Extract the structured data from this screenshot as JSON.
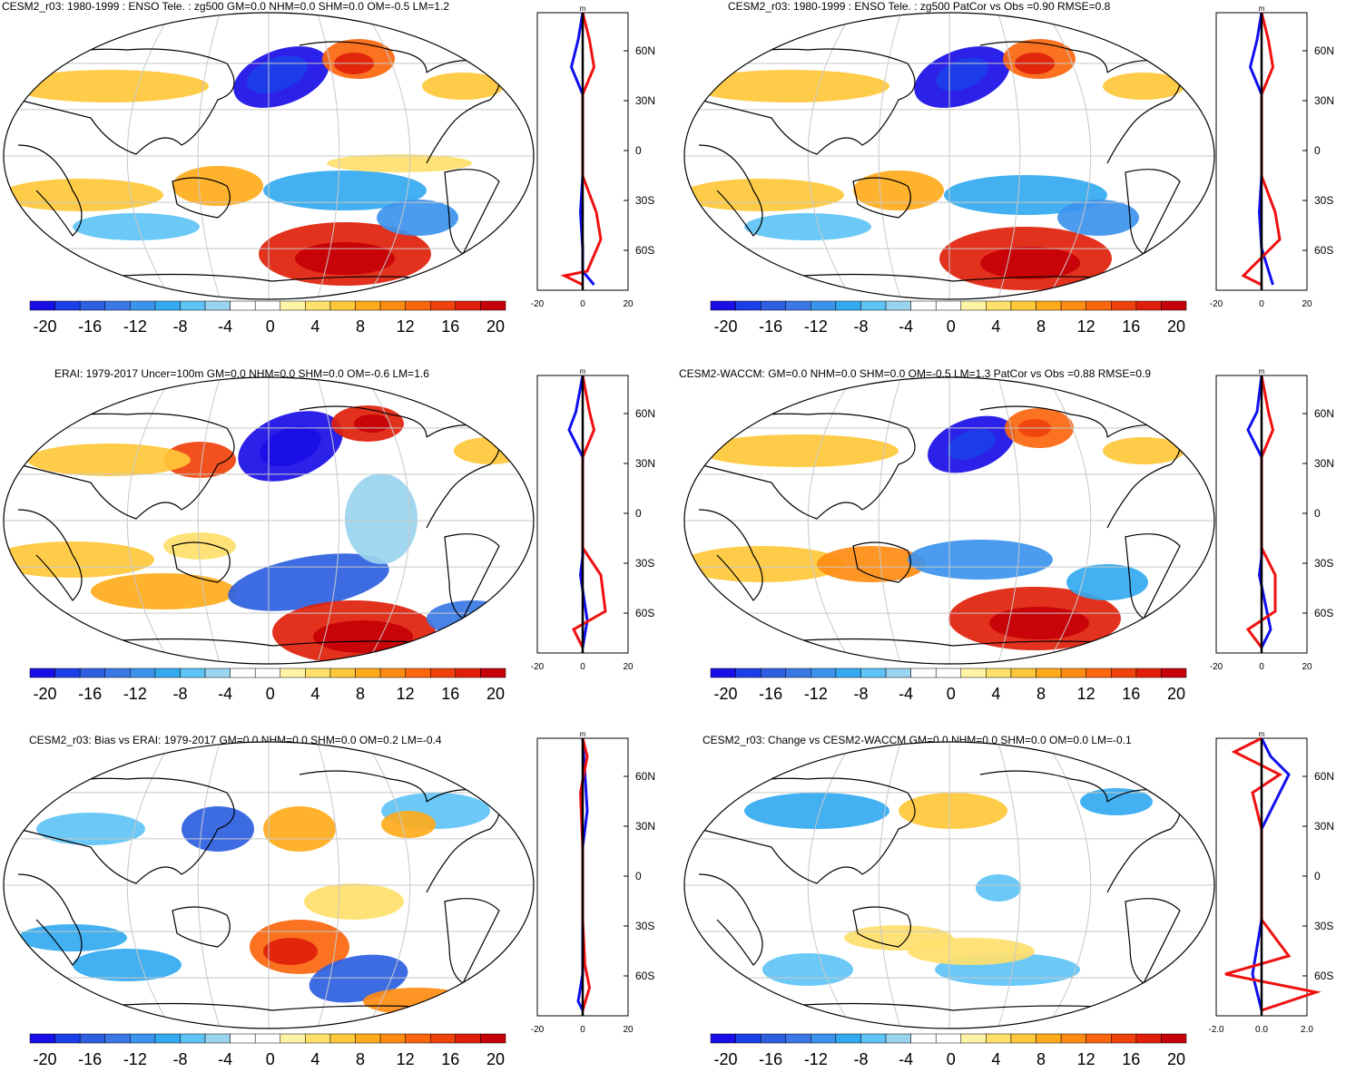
{
  "colorbar": {
    "labels": [
      "-20",
      "-16",
      "-12",
      "-8",
      "-4",
      "0",
      "4",
      "8",
      "12",
      "16",
      "20"
    ],
    "colors": [
      "#1a0ee6",
      "#1b3fe8",
      "#2d5fe0",
      "#3a78e6",
      "#3c93ee",
      "#33aaf0",
      "#5ec3f6",
      "#9ad4ef",
      "#ffffff",
      "#ffffff",
      "#fff4a6",
      "#ffe06b",
      "#ffc83a",
      "#ffab1c",
      "#ff8c12",
      "#fb660e",
      "#f0420c",
      "#e01f0a",
      "#c60008"
    ]
  },
  "zonal_axes": {
    "lat_ticks": [
      "60N",
      "30N",
      "0",
      "30S",
      "60S"
    ],
    "unit": "m",
    "x_ticks": [
      "-20",
      "0",
      "20"
    ],
    "x_ticks_small": [
      "-2.0",
      "0.0",
      "2.0"
    ]
  },
  "panels": [
    {
      "id": "model",
      "title": "CESM2_r03: 1980-1999 : ENSO Tele. : zg500 GM=0.0 NHM=0.0 SHM=0.0 OM=-0.5 LM=1.2"
    },
    {
      "id": "model-stats",
      "title": "CESM2_r03: 1980-1999 : ENSO Tele. : zg500 PatCor vs Obs =0.90 RMSE=0.8"
    },
    {
      "id": "obs",
      "title": "ERAI: 1979-2017 Uncer=100m GM=0.0 NHM=0.0 SHM=0.0 OM=-0.6 LM=1.6"
    },
    {
      "id": "ref",
      "title": "CESM2-WACCM: GM=0.0 NHM=0.0 SHM=0.0 OM=-0.5 LM=1.3 PatCor vs Obs =0.88 RMSE=0.9"
    },
    {
      "id": "bias",
      "title": "CESM2_r03: Bias vs ERAI: 1979-2017 GM=0.0 NHM=0.0 SHM=0.0 OM=0.2 LM=-0.4"
    },
    {
      "id": "change",
      "title": "CESM2_r03: Change vs CESM2-WACCM GM=0.0 NHM=0.0 SHM=0.0 OM=0.0 LM=-0.1"
    }
  ]
}
